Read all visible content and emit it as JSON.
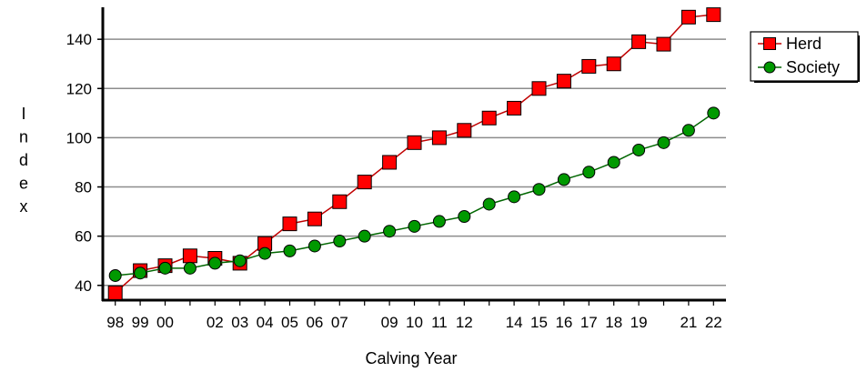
{
  "chart_data": {
    "type": "line",
    "xlabel": "Calving Year",
    "ylabel": "Index",
    "x_tick_labels": [
      "98",
      "99",
      "00",
      "02",
      "03",
      "04",
      "05",
      "06",
      "07",
      "09",
      "10",
      "11",
      "12",
      "14",
      "15",
      "16",
      "17",
      "18",
      "19",
      "21",
      "22"
    ],
    "x_tick_years": [
      1998,
      1999,
      2000,
      2002,
      2003,
      2004,
      2005,
      2006,
      2007,
      2009,
      2010,
      2011,
      2012,
      2014,
      2015,
      2016,
      2017,
      2018,
      2019,
      2021,
      2022
    ],
    "x": [
      1998,
      1999,
      2000,
      2001,
      2002,
      2003,
      2004,
      2005,
      2006,
      2007,
      2008,
      2009,
      2010,
      2011,
      2012,
      2013,
      2014,
      2015,
      2016,
      2017,
      2018,
      2019,
      2020,
      2021,
      2022
    ],
    "xlim": [
      1997.5,
      2022.5
    ],
    "ylim": [
      34,
      153
    ],
    "y_ticks": [
      40,
      60,
      80,
      100,
      120,
      140
    ],
    "grid": true,
    "legend_position": "top-right",
    "series": [
      {
        "name": "Herd",
        "color": "#ff0000",
        "line_color": "#c00000",
        "marker": "square",
        "values": [
          37,
          46,
          48,
          52,
          51,
          49,
          57,
          65,
          67,
          74,
          82,
          90,
          98,
          100,
          103,
          108,
          112,
          120,
          123,
          129,
          130,
          139,
          138,
          149,
          150
        ]
      },
      {
        "name": "Society",
        "color": "#009900",
        "line_color": "#006600",
        "marker": "circle",
        "values": [
          44,
          45,
          47,
          47,
          49,
          50,
          53,
          54,
          56,
          58,
          60,
          62,
          64,
          66,
          68,
          73,
          76,
          79,
          83,
          86,
          90,
          95,
          98,
          103,
          110
        ]
      }
    ]
  }
}
